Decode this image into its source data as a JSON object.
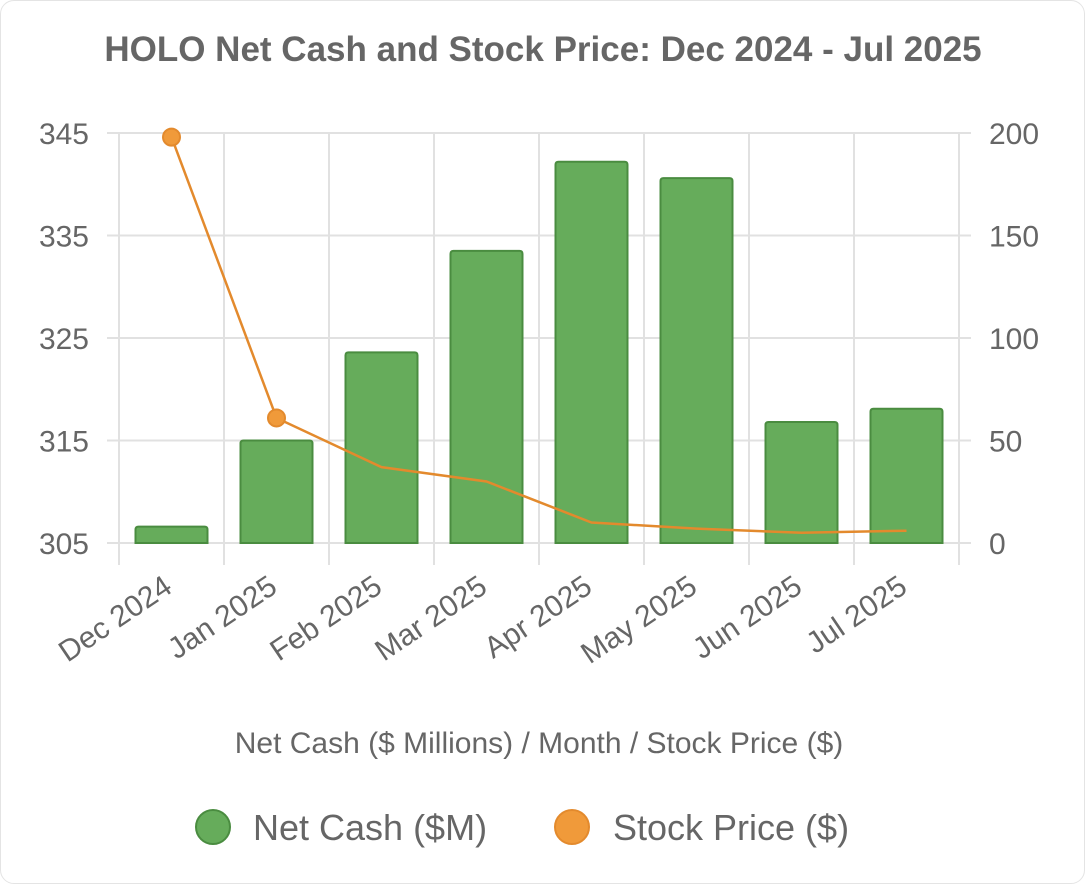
{
  "chart_data": {
    "type": "bar",
    "title": "HOLO Net Cash and Stock Price: Dec 2024 - Jul 2025",
    "xlabel": "Net Cash ($ Millions) / Month / Stock Price ($)",
    "categories": [
      "Dec 2024",
      "Jan 2025",
      "Feb 2025",
      "Mar 2025",
      "Apr 2025",
      "May 2025",
      "Jun 2025",
      "Jul 2025"
    ],
    "y_left": {
      "min": 305,
      "max": 345,
      "ticks": [
        "345",
        "335",
        "325",
        "315",
        "305"
      ]
    },
    "y_right": {
      "min": 0,
      "max": 200,
      "ticks": [
        "200",
        "150",
        "100",
        "50",
        "0"
      ]
    },
    "grid": true,
    "legend_position": "bottom",
    "series": [
      {
        "name": "Net Cash ($M)",
        "type": "bar",
        "axis": "left",
        "color": "#66ac5b",
        "border_color": "#4a8c40",
        "values": [
          306.6,
          315.0,
          323.6,
          333.5,
          342.2,
          340.6,
          316.8,
          318.1
        ]
      },
      {
        "name": "Stock Price ($)",
        "type": "line",
        "axis": "right",
        "color": "#f09a3a",
        "line_color": "#e38a2d",
        "values": [
          198,
          61,
          37,
          30,
          10,
          7,
          5,
          6
        ],
        "markers_shown": [
          0,
          1
        ]
      }
    ]
  }
}
